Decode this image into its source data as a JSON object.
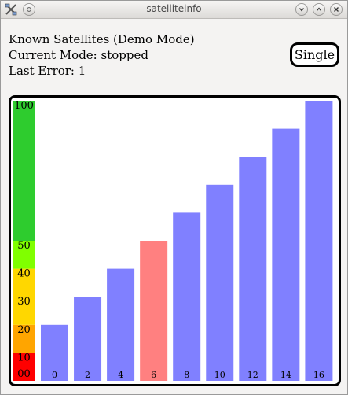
{
  "window": {
    "title": "satelliteinfo"
  },
  "status": {
    "line1": "Known Satellites (Demo Mode)",
    "mode_label": "Current Mode:",
    "mode_value": "stopped",
    "error_label": "Last Error:",
    "error_value": "1"
  },
  "toolbar": {
    "single_label": "Single"
  },
  "colors": {
    "normal_bar": "#8080ff",
    "highlight_bar": "#ff8080",
    "scale_red": "#ff0000",
    "scale_orange": "#ffa500",
    "scale_yellow": "#ffd700",
    "scale_lime": "#80ff00",
    "scale_green": "#2ecc2e"
  },
  "chart_data": {
    "type": "bar",
    "categories": [
      "0",
      "2",
      "4",
      "6",
      "8",
      "10",
      "12",
      "14",
      "16"
    ],
    "values": [
      20,
      30,
      40,
      50,
      60,
      70,
      80,
      90,
      100
    ],
    "highlighted_index": 3,
    "ylim": [
      0,
      100
    ],
    "scale_ticks": [
      "00",
      "10",
      "20",
      "30",
      "40",
      "50",
      "100"
    ],
    "scale_bands": [
      {
        "from": 0,
        "to": 10,
        "color": "#ff0000"
      },
      {
        "from": 10,
        "to": 20,
        "color": "#ffa500"
      },
      {
        "from": 20,
        "to": 40,
        "color": "#ffd700"
      },
      {
        "from": 40,
        "to": 50,
        "color": "#80ff00"
      },
      {
        "from": 50,
        "to": 100,
        "color": "#2ecc2e"
      }
    ]
  }
}
